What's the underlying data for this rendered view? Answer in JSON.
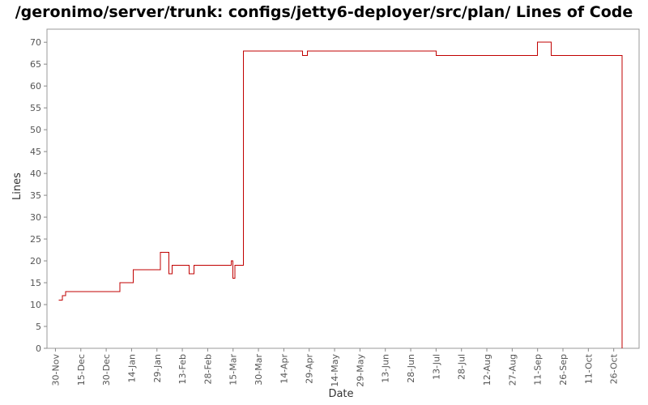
{
  "chart_data": {
    "type": "line",
    "title": "/geronimo/server/trunk: configs/jetty6-deployer/src/plan/ Lines of Code",
    "xlabel": "Date",
    "ylabel": "Lines",
    "ylim": [
      0,
      73
    ],
    "yticks": [
      0,
      5,
      10,
      15,
      20,
      25,
      30,
      35,
      40,
      45,
      50,
      55,
      60,
      65,
      70
    ],
    "xticks": [
      {
        "date": "2006-11-30",
        "label": "30-Nov"
      },
      {
        "date": "2006-12-15",
        "label": "15-Dec"
      },
      {
        "date": "2006-12-30",
        "label": "30-Dec"
      },
      {
        "date": "2007-01-14",
        "label": "14-Jan"
      },
      {
        "date": "2007-01-29",
        "label": "29-Jan"
      },
      {
        "date": "2007-02-13",
        "label": "13-Feb"
      },
      {
        "date": "2007-02-28",
        "label": "28-Feb"
      },
      {
        "date": "2007-03-15",
        "label": "15-Mar"
      },
      {
        "date": "2007-03-30",
        "label": "30-Mar"
      },
      {
        "date": "2007-04-14",
        "label": "14-Apr"
      },
      {
        "date": "2007-04-29",
        "label": "29-Apr"
      },
      {
        "date": "2007-05-14",
        "label": "14-May"
      },
      {
        "date": "2007-05-29",
        "label": "29-May"
      },
      {
        "date": "2007-06-13",
        "label": "13-Jun"
      },
      {
        "date": "2007-06-28",
        "label": "28-Jun"
      },
      {
        "date": "2007-07-13",
        "label": "13-Jul"
      },
      {
        "date": "2007-07-28",
        "label": "28-Jul"
      },
      {
        "date": "2007-08-12",
        "label": "12-Aug"
      },
      {
        "date": "2007-08-27",
        "label": "27-Aug"
      },
      {
        "date": "2007-09-11",
        "label": "11-Sep"
      },
      {
        "date": "2007-09-26",
        "label": "26-Sep"
      },
      {
        "date": "2007-10-11",
        "label": "11-Oct"
      },
      {
        "date": "2007-10-26",
        "label": "26-Oct"
      }
    ],
    "xlim": [
      "2006-11-25",
      "2007-11-10"
    ],
    "grid": false,
    "legend": "none",
    "colors": {
      "line": "#c00000",
      "frame": "#999999",
      "tick": "#888888"
    },
    "series": [
      {
        "x": [
          "2006-12-02",
          "2006-12-04",
          "2006-12-05",
          "2006-12-06",
          "2006-12-07",
          "2007-01-07",
          "2007-01-15",
          "2007-01-31",
          "2007-02-05",
          "2007-02-06",
          "2007-02-07",
          "2007-02-17",
          "2007-02-19",
          "2007-02-20",
          "2007-03-14",
          "2007-03-15",
          "2007-03-16",
          "2007-03-21",
          "2007-04-25",
          "2007-04-26",
          "2007-04-28",
          "2007-07-13",
          "2007-09-11",
          "2007-09-19",
          "2007-10-31",
          "2007-10-31"
        ],
        "values": [
          11,
          12,
          12,
          13,
          13,
          15,
          18,
          22,
          17,
          17,
          19,
          17,
          17,
          19,
          20,
          16,
          19,
          68,
          67,
          67,
          68,
          67,
          70,
          67,
          67,
          0
        ]
      }
    ]
  }
}
